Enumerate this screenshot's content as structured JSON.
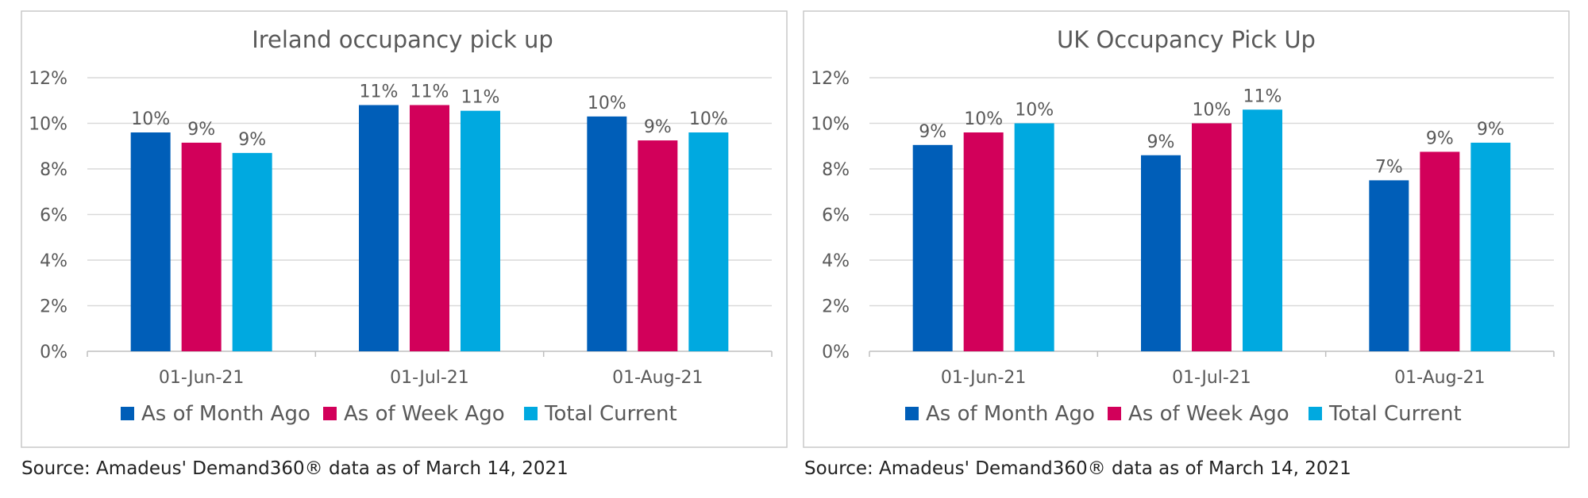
{
  "colors": {
    "month_ago": "#005EB8",
    "week_ago": "#D2005A",
    "total_current": "#00A9E0",
    "gridline": "#D9D9D9",
    "frame": "#C8C8C8",
    "text": "#595959"
  },
  "chart_data": [
    {
      "type": "bar",
      "title": "Ireland occupancy pick up",
      "categories": [
        "01-Jun-21",
        "01-Jul-21",
        "01-Aug-21"
      ],
      "ylim": [
        0,
        12
      ],
      "y_ticks": [
        "0%",
        "2%",
        "4%",
        "6%",
        "8%",
        "10%",
        "12%"
      ],
      "grid": true,
      "legend_position": "bottom",
      "series": [
        {
          "name": "As of Month Ago",
          "values": [
            9.6,
            10.8,
            10.3
          ],
          "labels": [
            "10%",
            "11%",
            "10%"
          ]
        },
        {
          "name": "As of Week Ago",
          "values": [
            9.15,
            10.8,
            9.25
          ],
          "labels": [
            "9%",
            "11%",
            "9%"
          ]
        },
        {
          "name": "Total Current",
          "values": [
            8.7,
            10.55,
            9.6
          ],
          "labels": [
            "9%",
            "11%",
            "10%"
          ]
        }
      ],
      "source": "Source: Amadeus' Demand360® data as of March 14, 2021"
    },
    {
      "type": "bar",
      "title": "UK Occupancy Pick Up",
      "categories": [
        "01-Jun-21",
        "01-Jul-21",
        "01-Aug-21"
      ],
      "ylim": [
        0,
        12
      ],
      "y_ticks": [
        "0%",
        "2%",
        "4%",
        "6%",
        "8%",
        "10%",
        "12%"
      ],
      "grid": true,
      "legend_position": "bottom",
      "series": [
        {
          "name": "As of Month Ago",
          "values": [
            9.05,
            8.6,
            7.5
          ],
          "labels": [
            "9%",
            "9%",
            "7%"
          ]
        },
        {
          "name": "As of Week Ago",
          "values": [
            9.6,
            10.0,
            8.75
          ],
          "labels": [
            "10%",
            "10%",
            "9%"
          ]
        },
        {
          "name": "Total Current",
          "values": [
            10.0,
            10.6,
            9.15
          ],
          "labels": [
            "10%",
            "11%",
            "9%"
          ]
        }
      ],
      "source": "Source: Amadeus' Demand360® data as of March 14, 2021"
    }
  ]
}
